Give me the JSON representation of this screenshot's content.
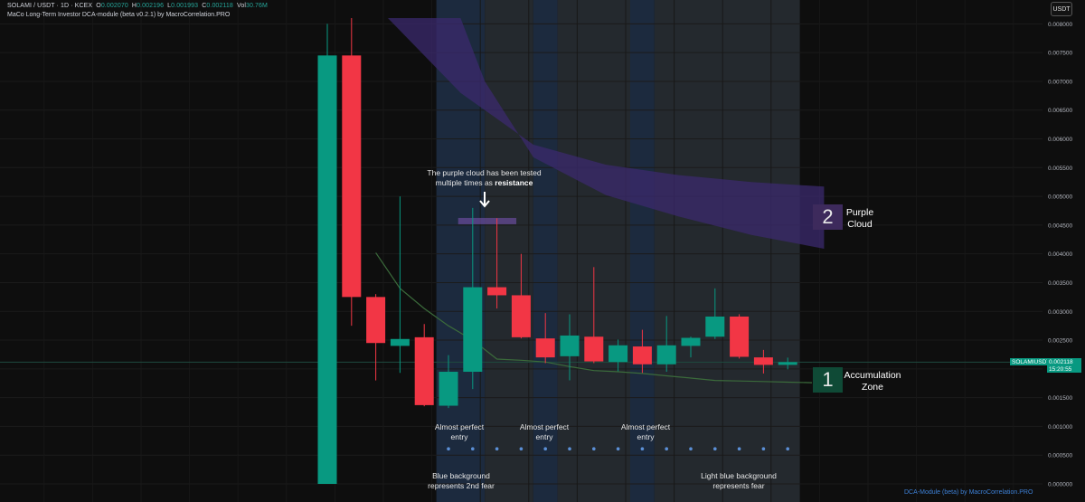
{
  "header": {
    "symbol": "SOLAMI / USDT · 1D · KCEX",
    "open_label": "O",
    "open": "0.002070",
    "high_label": "H",
    "high": "0.002196",
    "low_label": "L",
    "low": "0.001993",
    "close_label": "C",
    "close": "0.002118",
    "vol_label": "Vol",
    "vol": "30.76M",
    "indicator": "MaCo Long-Term Investor DCA-module (beta v0.2.1) by MacroCorrelation.PRO"
  },
  "currency_button": "USDT",
  "price_label": {
    "symbol": "SOLAMIUSDT",
    "price": "0.002118",
    "countdown": "15:20:55"
  },
  "annotations": {
    "cloud_note_line1": "The purple cloud has been tested",
    "cloud_note_line2_prefix": "multiple times as ",
    "cloud_note_bold": "resistance",
    "entry1_line1": "Almost perfect",
    "entry1_line2": "entry",
    "entry2_line1": "Almost perfect",
    "entry2_line2": "entry",
    "entry3_line1": "Almost perfect",
    "entry3_line2": "entry",
    "blue_bg_line1": "Blue background",
    "blue_bg_line2": "represents 2nd fear",
    "light_blue_line1": "Light blue background",
    "light_blue_line2": "represents fear",
    "zone2_number": "2",
    "zone2_line1": "Purple",
    "zone2_line2": "Cloud",
    "zone1_number": "1",
    "zone1_line1": "Accumulation",
    "zone1_line2": "Zone"
  },
  "footer": "DCA-Module (beta) by MacroCorrelation.PRO",
  "colors": {
    "background": "#0e0e0e",
    "bull": "#089981",
    "bear": "#f23645",
    "purple_cloud": "#3b2a6e",
    "blue_bg": "#1c2a3e",
    "light_blue_bg": "#24292e",
    "ma_line": "#3b6b3b",
    "dot": "#5b8fd6"
  },
  "chart_data": {
    "type": "candlestick",
    "title": "SOLAMI / USDT · 1D · KCEX",
    "ylim": [
      0,
      0.0081
    ],
    "y_ticks": [
      "0.008000",
      "0.007500",
      "0.007000",
      "0.006500",
      "0.006000",
      "0.005500",
      "0.005000",
      "0.004500",
      "0.004000",
      "0.003500",
      "0.003000",
      "0.002500",
      "0.002000",
      "0.001500",
      "0.001000",
      "0.000500",
      "0.000000"
    ],
    "candles": [
      {
        "o": 0.0,
        "h": 0.008,
        "l": 0.0,
        "c": 0.00745
      },
      {
        "o": 0.00745,
        "h": 0.0081,
        "l": 0.00275,
        "c": 0.00325
      },
      {
        "o": 0.00325,
        "h": 0.0033,
        "l": 0.0018,
        "c": 0.00245
      },
      {
        "o": 0.0024,
        "h": 0.005,
        "l": 0.00193,
        "c": 0.00252
      },
      {
        "o": 0.00255,
        "h": 0.00278,
        "l": 0.00135,
        "c": 0.00137
      },
      {
        "o": 0.00136,
        "h": 0.00224,
        "l": 0.00132,
        "c": 0.00195
      },
      {
        "o": 0.00195,
        "h": 0.0048,
        "l": 0.00165,
        "c": 0.00342
      },
      {
        "o": 0.00342,
        "h": 0.00462,
        "l": 0.00305,
        "c": 0.00328
      },
      {
        "o": 0.00328,
        "h": 0.004,
        "l": 0.00253,
        "c": 0.00255
      },
      {
        "o": 0.00253,
        "h": 0.00297,
        "l": 0.0021,
        "c": 0.0022
      },
      {
        "o": 0.00222,
        "h": 0.00295,
        "l": 0.0018,
        "c": 0.00258
      },
      {
        "o": 0.00256,
        "h": 0.00377,
        "l": 0.0021,
        "c": 0.00213
      },
      {
        "o": 0.00212,
        "h": 0.00251,
        "l": 0.00196,
        "c": 0.00241
      },
      {
        "o": 0.00239,
        "h": 0.00268,
        "l": 0.00193,
        "c": 0.00208
      },
      {
        "o": 0.00208,
        "h": 0.00292,
        "l": 0.00195,
        "c": 0.00241
      },
      {
        "o": 0.0024,
        "h": 0.00256,
        "l": 0.0022,
        "c": 0.00254
      },
      {
        "o": 0.00256,
        "h": 0.0034,
        "l": 0.00252,
        "c": 0.00291
      },
      {
        "o": 0.00291,
        "h": 0.00295,
        "l": 0.00218,
        "c": 0.00221
      },
      {
        "o": 0.0022,
        "h": 0.00233,
        "l": 0.00192,
        "c": 0.00207
      },
      {
        "o": 0.00207,
        "h": 0.002196,
        "l": 0.001993,
        "c": 0.002118
      }
    ],
    "moving_average": [
      {
        "i": 2,
        "v": 0.00402
      },
      {
        "i": 3,
        "v": 0.0034
      },
      {
        "i": 4,
        "v": 0.00305
      },
      {
        "i": 5,
        "v": 0.00275
      },
      {
        "i": 6,
        "v": 0.0025
      },
      {
        "i": 7,
        "v": 0.00217
      },
      {
        "i": 8,
        "v": 0.00215
      },
      {
        "i": 9,
        "v": 0.00212
      },
      {
        "i": 10,
        "v": 0.00204
      },
      {
        "i": 11,
        "v": 0.00197
      },
      {
        "i": 12,
        "v": 0.00195
      },
      {
        "i": 13,
        "v": 0.00192
      },
      {
        "i": 14,
        "v": 0.00188
      },
      {
        "i": 15,
        "v": 0.00184
      },
      {
        "i": 16,
        "v": 0.0018
      },
      {
        "i": 17,
        "v": 0.00179
      },
      {
        "i": 18,
        "v": 0.00178
      },
      {
        "i": 19,
        "v": 0.00177
      },
      {
        "i": 20,
        "v": 0.00176
      }
    ],
    "purple_cloud_top": [
      {
        "i": 2.5,
        "v": 0.0081
      },
      {
        "i": 5.5,
        "v": 0.0068
      },
      {
        "i": 8.5,
        "v": 0.0059
      },
      {
        "i": 11.5,
        "v": 0.00555
      },
      {
        "i": 14.5,
        "v": 0.00537
      },
      {
        "i": 17.5,
        "v": 0.00525
      },
      {
        "i": 20.5,
        "v": 0.00517
      }
    ],
    "purple_cloud_bottom": [
      {
        "i": 2.5,
        "v": 0.0081
      },
      {
        "i": 5.5,
        "v": 0.0081
      },
      {
        "i": 6.5,
        "v": 0.007
      },
      {
        "i": 8.5,
        "v": 0.00568
      },
      {
        "i": 11.5,
        "v": 0.00502
      },
      {
        "i": 14.5,
        "v": 0.00465
      },
      {
        "i": 17.5,
        "v": 0.00433
      },
      {
        "i": 20.5,
        "v": 0.00409
      }
    ],
    "resistance_marker": {
      "from": 5.4,
      "to": 7.8,
      "v": 0.00457
    },
    "background_zones": [
      {
        "from": 4.5,
        "to": 6.5,
        "kind": "blue"
      },
      {
        "from": 6.5,
        "to": 8.5,
        "kind": "light_blue"
      },
      {
        "from": 8.5,
        "to": 9.5,
        "kind": "blue"
      },
      {
        "from": 9.5,
        "to": 12.5,
        "kind": "light_blue"
      },
      {
        "from": 12.5,
        "to": 13.5,
        "kind": "blue"
      },
      {
        "from": 13.5,
        "to": 19.5,
        "kind": "light_blue"
      }
    ],
    "dots": [
      5,
      6,
      7,
      8,
      9,
      10,
      11,
      12,
      13,
      14,
      15,
      16,
      17,
      18,
      19
    ],
    "dot_value": 0.00061,
    "last_price": 0.002118,
    "grid": true
  }
}
